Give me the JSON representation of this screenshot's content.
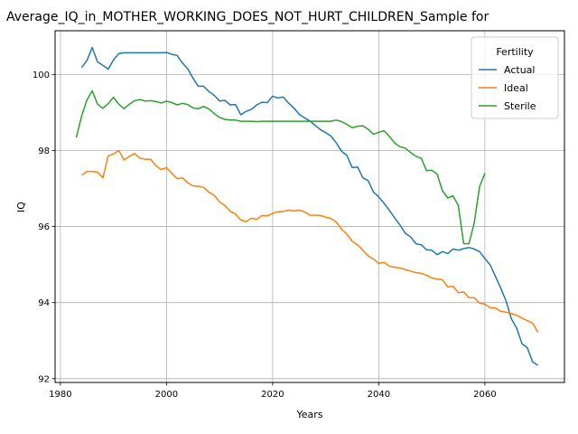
{
  "chart_data": {
    "type": "line",
    "title": "Average_IQ_in_MOTHER_WORKING_DOES_NOT_HURT_CHILDREN_Sample for",
    "xlabel": "Years",
    "ylabel": "IQ",
    "xlim": [
      1979,
      2075
    ],
    "ylim": [
      91.9,
      101.15
    ],
    "xticks": [
      1980,
      2000,
      2020,
      2040,
      2060
    ],
    "yticks": [
      92,
      94,
      96,
      98,
      100
    ],
    "grid": true,
    "legend": {
      "title": "Fertility",
      "placement": "top-right"
    },
    "colors": {
      "Actual": "#1f77b4",
      "Ideal": "#ff7f0e",
      "Sterile": "#2ca02c"
    },
    "series": [
      {
        "name": "Actual",
        "x": [
          1984,
          1985,
          1986,
          1987,
          1988,
          1989,
          1990,
          1991,
          1992,
          1993,
          1994,
          1995,
          1996,
          1997,
          1998,
          1999,
          2000,
          2001,
          2002,
          2003,
          2004,
          2005,
          2006,
          2007,
          2008,
          2009,
          2010,
          2011,
          2012,
          2013,
          2014,
          2015,
          2016,
          2017,
          2018,
          2019,
          2020,
          2021,
          2022,
          2023,
          2024,
          2025,
          2026,
          2027,
          2028,
          2029,
          2030,
          2031,
          2032,
          2033,
          2034,
          2035,
          2036,
          2037,
          2038,
          2039,
          2040,
          2041,
          2042,
          2043,
          2044,
          2045,
          2046,
          2047,
          2048,
          2049,
          2050,
          2051,
          2052,
          2053,
          2054,
          2055,
          2056,
          2057,
          2058,
          2059,
          2060,
          2061,
          2062,
          2063,
          2064,
          2065,
          2066,
          2067,
          2068,
          2069,
          2070
        ],
        "values": [
          100.18,
          100.37,
          100.71,
          100.33,
          100.24,
          100.14,
          100.38,
          100.55,
          100.57,
          100.57,
          100.57,
          100.57,
          100.57,
          100.57,
          100.57,
          100.57,
          100.58,
          100.53,
          100.5,
          100.3,
          100.15,
          99.9,
          99.69,
          99.69,
          99.55,
          99.45,
          99.3,
          99.32,
          99.2,
          99.21,
          98.94,
          99.03,
          99.08,
          99.2,
          99.27,
          99.26,
          99.43,
          99.38,
          99.41,
          99.25,
          99.12,
          98.95,
          98.86,
          98.78,
          98.66,
          98.55,
          98.47,
          98.38,
          98.2,
          97.98,
          97.87,
          97.55,
          97.57,
          97.28,
          97.21,
          96.91,
          96.78,
          96.61,
          96.43,
          96.23,
          96.04,
          95.82,
          95.73,
          95.55,
          95.52,
          95.39,
          95.38,
          95.26,
          95.34,
          95.29,
          95.41,
          95.38,
          95.42,
          95.45,
          95.41,
          95.34,
          95.16,
          94.99,
          94.69,
          94.38,
          94.04,
          93.57,
          93.33,
          92.92,
          92.81,
          92.44,
          92.35
        ]
      },
      {
        "name": "Ideal",
        "x": [
          1984,
          1985,
          1986,
          1987,
          1988,
          1989,
          1990,
          1991,
          1992,
          1993,
          1994,
          1995,
          1996,
          1997,
          1998,
          1999,
          2000,
          2001,
          2002,
          2003,
          2004,
          2005,
          2006,
          2007,
          2008,
          2009,
          2010,
          2011,
          2012,
          2013,
          2014,
          2015,
          2016,
          2017,
          2018,
          2019,
          2020,
          2021,
          2022,
          2023,
          2024,
          2025,
          2026,
          2027,
          2028,
          2029,
          2030,
          2031,
          2032,
          2033,
          2034,
          2035,
          2036,
          2037,
          2038,
          2039,
          2040,
          2041,
          2042,
          2043,
          2044,
          2045,
          2046,
          2047,
          2048,
          2049,
          2050,
          2051,
          2052,
          2053,
          2054,
          2055,
          2056,
          2057,
          2058,
          2059,
          2060,
          2061,
          2062,
          2063,
          2064,
          2065,
          2066,
          2067,
          2068,
          2069,
          2070
        ],
        "values": [
          97.35,
          97.45,
          97.45,
          97.43,
          97.28,
          97.86,
          97.91,
          98.0,
          97.75,
          97.85,
          97.92,
          97.8,
          97.77,
          97.77,
          97.6,
          97.5,
          97.55,
          97.4,
          97.26,
          97.28,
          97.15,
          97.07,
          97.06,
          97.03,
          96.9,
          96.82,
          96.65,
          96.55,
          96.4,
          96.33,
          96.17,
          96.13,
          96.22,
          96.19,
          96.29,
          96.28,
          96.35,
          96.39,
          96.4,
          96.43,
          96.41,
          96.43,
          96.39,
          96.3,
          96.3,
          96.29,
          96.25,
          96.21,
          96.12,
          95.93,
          95.8,
          95.61,
          95.52,
          95.38,
          95.23,
          95.15,
          95.03,
          95.06,
          94.96,
          94.93,
          94.91,
          94.87,
          94.83,
          94.79,
          94.77,
          94.72,
          94.65,
          94.62,
          94.6,
          94.41,
          94.43,
          94.26,
          94.28,
          94.13,
          94.13,
          93.99,
          93.96,
          93.87,
          93.86,
          93.77,
          93.75,
          93.71,
          93.67,
          93.59,
          93.53,
          93.46,
          93.22
        ]
      },
      {
        "name": "Sterile",
        "x": [
          1983,
          1984,
          1985,
          1986,
          1987,
          1988,
          1989,
          1990,
          1991,
          1992,
          1993,
          1994,
          1995,
          1996,
          1997,
          1998,
          1999,
          2000,
          2001,
          2002,
          2003,
          2004,
          2005,
          2006,
          2007,
          2008,
          2009,
          2010,
          2011,
          2012,
          2013,
          2014,
          2015,
          2016,
          2017,
          2018,
          2019,
          2020,
          2021,
          2022,
          2023,
          2024,
          2025,
          2026,
          2027,
          2028,
          2029,
          2030,
          2031,
          2032,
          2033,
          2034,
          2035,
          2036,
          2037,
          2038,
          2039,
          2040,
          2041,
          2042,
          2043,
          2044,
          2045,
          2046,
          2047,
          2048,
          2049,
          2050,
          2051,
          2052,
          2053,
          2054,
          2055,
          2056,
          2057,
          2058,
          2059,
          2060
        ],
        "values": [
          98.34,
          98.91,
          99.33,
          99.57,
          99.22,
          99.11,
          99.23,
          99.4,
          99.22,
          99.1,
          99.22,
          99.31,
          99.34,
          99.3,
          99.31,
          99.29,
          99.25,
          99.3,
          99.26,
          99.2,
          99.24,
          99.21,
          99.12,
          99.1,
          99.16,
          99.09,
          98.97,
          98.87,
          98.82,
          98.8,
          98.8,
          98.77,
          98.77,
          98.77,
          98.76,
          98.77,
          98.77,
          98.77,
          98.77,
          98.77,
          98.77,
          98.77,
          98.77,
          98.77,
          98.77,
          98.77,
          98.77,
          98.77,
          98.77,
          98.8,
          98.76,
          98.69,
          98.6,
          98.64,
          98.65,
          98.56,
          98.43,
          98.48,
          98.52,
          98.37,
          98.2,
          98.1,
          98.06,
          97.95,
          97.85,
          97.8,
          97.47,
          97.48,
          97.38,
          96.94,
          96.75,
          96.81,
          96.55,
          95.55,
          95.55,
          96.1,
          97.05,
          97.4
        ]
      }
    ]
  }
}
